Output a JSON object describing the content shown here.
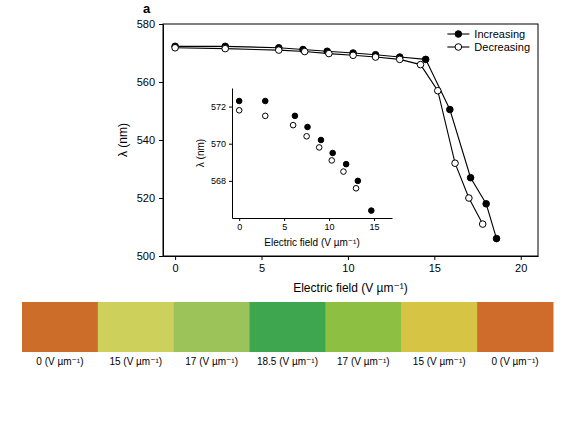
{
  "chart_data": [
    {
      "type": "line",
      "annotations": [
        "a"
      ],
      "xlabel": "Electric field (V µm⁻¹)",
      "ylabel": "λ (nm)",
      "xlim": [
        -0.7,
        21
      ],
      "ylim": [
        500,
        580
      ],
      "xticks": [
        0,
        5,
        10,
        15,
        20
      ],
      "yticks": [
        500,
        520,
        540,
        560,
        580
      ],
      "legend": "upper right",
      "series": [
        {
          "name": "Increasing",
          "color": "#000000",
          "marker": "filled_circle",
          "line_style": "solid",
          "x": [
            0,
            2.9,
            6.0,
            7.4,
            8.8,
            10.3,
            11.6,
            13.0,
            14.5,
            15.9,
            17.1,
            18.0,
            18.6
          ],
          "values": [
            572.3,
            572.3,
            571.8,
            571.2,
            570.6,
            570.0,
            569.4,
            568.6,
            567.8,
            550.5,
            527,
            518,
            506
          ]
        },
        {
          "name": "Decreasing",
          "color": "#000000",
          "marker": "open_circle",
          "line_style": "solid",
          "x": [
            0,
            2.9,
            6.0,
            7.5,
            8.9,
            10.3,
            11.6,
            13.0,
            14.2,
            15.2,
            16.2,
            17.0,
            17.8
          ],
          "values": [
            571.8,
            571.5,
            571.0,
            570.5,
            569.8,
            569.2,
            568.6,
            567.8,
            566.0,
            557,
            532,
            520,
            511
          ]
        }
      ]
    },
    {
      "type": "scatter",
      "xlabel": "Electric field (V µm⁻¹)",
      "ylabel": "λ (nm)",
      "xlim": [
        -0.8,
        17
      ],
      "ylim": [
        566,
        573
      ],
      "xticks": [
        0,
        5,
        10,
        15
      ],
      "yticks": [
        568,
        570,
        572
      ],
      "series": [
        {
          "name": "Increasing",
          "color": "#000000",
          "marker": "filled_circle",
          "line_style": "none",
          "x": [
            0,
            2.9,
            6.2,
            7.6,
            9.1,
            10.4,
            11.9,
            13.2,
            14.7
          ],
          "values": [
            572.3,
            572.3,
            571.5,
            570.9,
            570.2,
            569.5,
            568.9,
            568.0,
            566.4
          ]
        },
        {
          "name": "Decreasing",
          "color": "#000000",
          "marker": "open_circle",
          "line_style": "none",
          "x": [
            0,
            2.9,
            6.0,
            7.5,
            8.9,
            10.3,
            11.6,
            13.0
          ],
          "values": [
            571.8,
            571.5,
            571.0,
            570.4,
            569.8,
            569.1,
            568.5,
            567.6
          ]
        }
      ]
    }
  ],
  "color_strip": {
    "patches": [
      {
        "label": "0 (V µm⁻¹)",
        "color": "#cc6e2a"
      },
      {
        "label": "15 (V µm⁻¹)",
        "color": "#cdd05a"
      },
      {
        "label": "17 (V µm⁻¹)",
        "color": "#9cc25a"
      },
      {
        "label": "18.5 (V µm⁻¹)",
        "color": "#3ea64e"
      },
      {
        "label": "17 (V µm⁻¹)",
        "color": "#8cbf42"
      },
      {
        "label": "15 (V µm⁻¹)",
        "color": "#d6c444"
      },
      {
        "label": "0 (V µm⁻¹)",
        "color": "#cf6c2c"
      }
    ]
  }
}
